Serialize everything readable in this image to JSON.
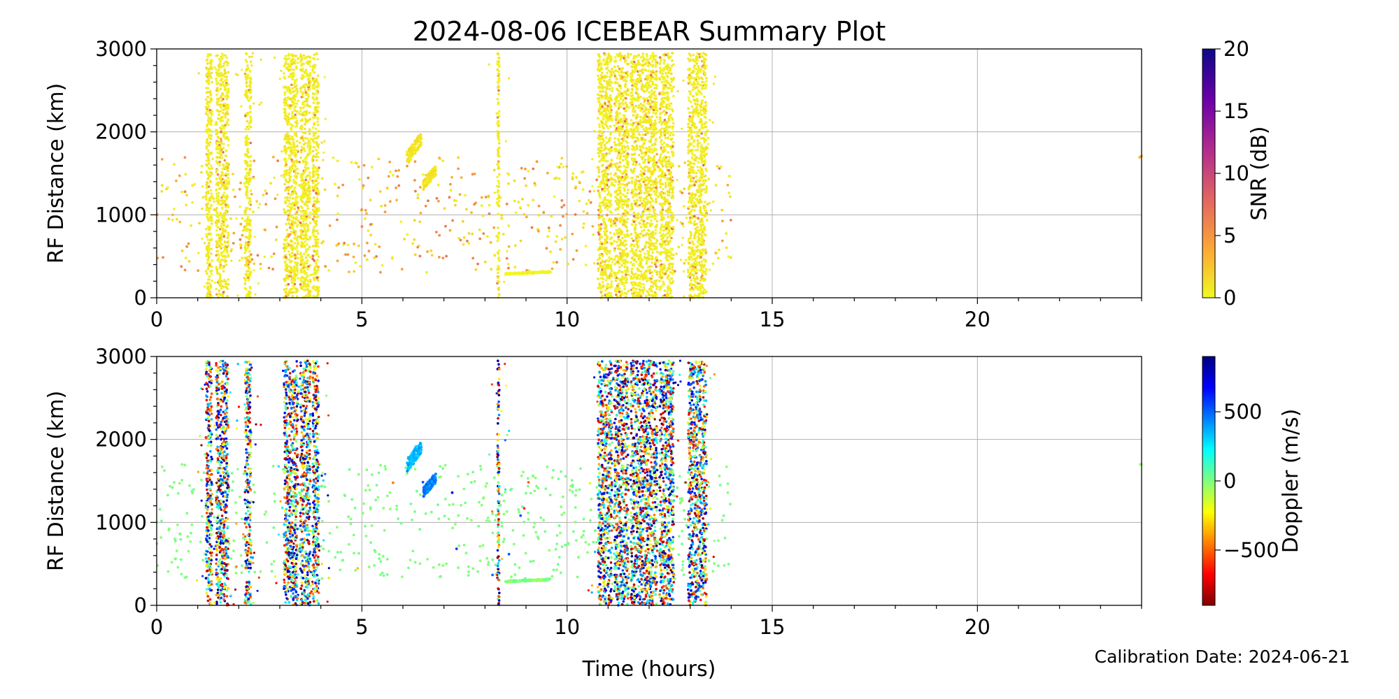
{
  "title": "2024-08-06 ICEBEAR Summary Plot",
  "footer": "Calibration Date: 2024-06-21",
  "chart_data": [
    {
      "type": "scatter",
      "panel": "top",
      "xlabel": "",
      "ylabel": "RF Distance (km)",
      "xlim": [
        0,
        24
      ],
      "ylim": [
        0,
        3000
      ],
      "xticks": [
        0,
        5,
        10,
        15,
        20
      ],
      "yticks": [
        0,
        1000,
        2000,
        3000
      ],
      "grid": true,
      "colorbar": {
        "label": "SNR (dB)",
        "range": [
          0,
          20
        ],
        "ticks": [
          0,
          5,
          10,
          15,
          20
        ],
        "colormap": "plasma_r",
        "colors": [
          "#f0f921",
          "#fca636",
          "#e16462",
          "#b12a90",
          "#6a00a8",
          "#0d0887"
        ]
      },
      "vertical_bands_hours": [
        [
          1.2,
          1.35
        ],
        [
          1.45,
          1.75
        ],
        [
          2.15,
          2.3
        ],
        [
          3.1,
          3.45
        ],
        [
          3.5,
          3.75
        ],
        [
          3.8,
          3.95
        ],
        [
          8.3,
          8.35
        ],
        [
          10.75,
          11.1
        ],
        [
          11.15,
          11.5
        ],
        [
          11.55,
          12.2
        ],
        [
          12.25,
          12.6
        ],
        [
          12.95,
          13.4
        ]
      ],
      "clusters": [
        {
          "t_range": [
            6.1,
            6.45
          ],
          "distance_range_km": [
            1600,
            2000
          ],
          "snr_db": 1
        },
        {
          "t_range": [
            6.5,
            6.8
          ],
          "distance_range_km": [
            1300,
            1600
          ],
          "snr_db": 1
        },
        {
          "t_range": [
            8.5,
            9.6
          ],
          "distance_range_km": [
            280,
            320
          ],
          "snr_db": 0
        },
        {
          "t_range": [
            23.95,
            24.0
          ],
          "distance_range_km": [
            1690,
            1710
          ],
          "snr_db": 3
        }
      ],
      "scattered_points": {
        "t_range": [
          0,
          14
        ],
        "distance_range_km": [
          300,
          1700
        ],
        "snr_db_range": [
          0,
          8
        ]
      }
    },
    {
      "type": "scatter",
      "panel": "bottom",
      "xlabel": "Time (hours)",
      "ylabel": "RF Distance (km)",
      "xlim": [
        0,
        24
      ],
      "ylim": [
        0,
        3000
      ],
      "xticks": [
        0,
        5,
        10,
        15,
        20
      ],
      "yticks": [
        0,
        1000,
        2000,
        3000
      ],
      "grid": true,
      "colorbar": {
        "label": "Doppler (m/s)",
        "range": [
          -900,
          900
        ],
        "ticks": [
          -500,
          0,
          500
        ],
        "tick_labels": [
          "−500",
          "0",
          "500"
        ],
        "colormap": "jet_r",
        "colors": [
          "#7f0000",
          "#ff0000",
          "#ff7f00",
          "#ffff00",
          "#7fff7f",
          "#00ffff",
          "#007fff",
          "#0000ff",
          "#00007f"
        ]
      },
      "vertical_bands_hours": [
        [
          1.2,
          1.35
        ],
        [
          1.45,
          1.75
        ],
        [
          2.15,
          2.3
        ],
        [
          3.1,
          3.45
        ],
        [
          3.5,
          3.75
        ],
        [
          3.8,
          3.95
        ],
        [
          8.3,
          8.35
        ],
        [
          10.75,
          11.1
        ],
        [
          11.15,
          11.5
        ],
        [
          11.55,
          12.2
        ],
        [
          12.25,
          12.6
        ],
        [
          12.95,
          13.4
        ]
      ],
      "clusters": [
        {
          "t_range": [
            6.1,
            6.45
          ],
          "distance_range_km": [
            1600,
            2000
          ],
          "doppler_ms": 350
        },
        {
          "t_range": [
            6.5,
            6.8
          ],
          "distance_range_km": [
            1300,
            1600
          ],
          "doppler_ms": 450
        },
        {
          "t_range": [
            8.5,
            9.6
          ],
          "distance_range_km": [
            280,
            320
          ],
          "doppler_ms": 0
        },
        {
          "t_range": [
            23.95,
            24.0
          ],
          "distance_range_km": [
            1690,
            1710
          ],
          "doppler_ms": 0
        }
      ],
      "scattered_points": {
        "t_range": [
          0,
          14
        ],
        "distance_range_km": [
          300,
          1700
        ],
        "doppler_ms": 0
      }
    }
  ]
}
